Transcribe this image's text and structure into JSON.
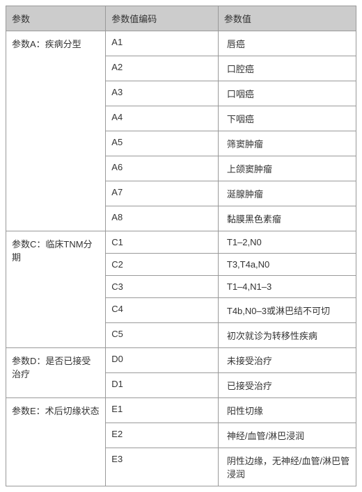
{
  "colors": {
    "header_bg": "#cccccc",
    "border": "#999999",
    "text": "#333333",
    "bg": "#ffffff"
  },
  "columns": [
    {
      "label": "参数"
    },
    {
      "label": "参数值编码"
    },
    {
      "label": "参数值"
    }
  ],
  "groups": [
    {
      "param": "参数A：疾病分型",
      "rows": [
        {
          "code": "A1",
          "value": "唇癌"
        },
        {
          "code": "A2",
          "value": "口腔癌"
        },
        {
          "code": "A3",
          "value": "口咽癌"
        },
        {
          "code": "A4",
          "value": "下咽癌"
        },
        {
          "code": "A5",
          "value": "筛窦肿瘤"
        },
        {
          "code": "A6",
          "value": "上颌窦肿瘤"
        },
        {
          "code": "A7",
          "value": "涎腺肿瘤"
        },
        {
          "code": "A8",
          "value": "黏膜黑色素瘤"
        }
      ]
    },
    {
      "param": "参数C：临床TNM分期",
      "rows": [
        {
          "code": "C1",
          "value": "T1–2,N0"
        },
        {
          "code": "C2",
          "value": "T3,T4a,N0"
        },
        {
          "code": "C3",
          "value": " T1–4,N1–3"
        },
        {
          "code": "C4",
          "value": "T4b,N0–3或淋巴结不可切"
        },
        {
          "code": "C5",
          "value": "初次就诊为转移性疾病"
        }
      ]
    },
    {
      "param": "参数D：是否已接受治疗",
      "rows": [
        {
          "code": "D0",
          "value": "未接受治疗"
        },
        {
          "code": "D1",
          "value": "已接受治疗"
        }
      ]
    },
    {
      "param": "参数E：术后切缘状态",
      "rows": [
        {
          "code": "E1",
          "value": "阳性切缘"
        },
        {
          "code": "E2",
          "value": "神经/血管/淋巴浸润"
        },
        {
          "code": "E3",
          "value": "阴性边缘，无神经/血管/淋巴管浸润"
        }
      ]
    }
  ]
}
